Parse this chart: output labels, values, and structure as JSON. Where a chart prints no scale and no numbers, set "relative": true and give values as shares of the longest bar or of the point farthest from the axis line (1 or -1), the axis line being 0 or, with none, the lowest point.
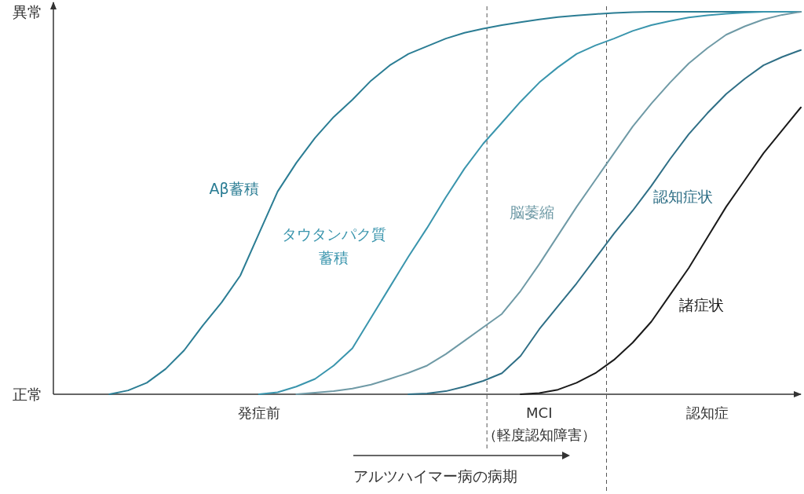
{
  "chart_data": {
    "type": "line",
    "relative": true,
    "categories": [
      null,
      null,
      null,
      null,
      null,
      null,
      null,
      null,
      null,
      null,
      null,
      "発症前",
      null,
      null,
      null,
      null,
      null,
      null,
      null,
      null,
      null,
      null,
      null,
      null,
      null,
      null,
      "MCI（軽度認知障害）",
      null,
      null,
      null,
      null,
      null,
      null,
      null,
      null,
      "認知症",
      null,
      null,
      null,
      null,
      null
    ],
    "xlabel": "アルツハイマー病の病期",
    "annotations": [
      "正常",
      "異常"
    ],
    "series": [
      {
        "name": "Aβ蓄積",
        "color": "#2b7d94",
        "values": [
          null,
          null,
          null,
          0,
          0.01,
          0.03,
          0.066,
          0.115,
          0.18,
          0.24,
          0.31,
          0.42,
          0.53,
          0.605,
          0.67,
          0.725,
          0.77,
          0.82,
          0.86,
          0.89,
          0.91,
          0.93,
          0.945,
          0.956,
          0.965,
          0.973,
          0.98,
          0.986,
          0.99,
          0.994,
          0.997,
          0.999,
          1,
          1,
          1,
          1,
          1,
          1,
          1,
          1,
          1
        ]
      },
      {
        "name": "タウタンパク質蓄積",
        "color": "#3a95ad",
        "values": [
          null,
          null,
          null,
          null,
          null,
          null,
          null,
          null,
          null,
          null,
          null,
          0,
          0.005,
          0.02,
          0.04,
          0.075,
          0.12,
          0.2,
          0.28,
          0.36,
          0.435,
          0.515,
          0.59,
          0.655,
          0.71,
          0.765,
          0.815,
          0.855,
          0.89,
          0.912,
          0.93,
          0.95,
          0.965,
          0.976,
          0.985,
          0.991,
          0.995,
          0.998,
          1,
          1,
          1
        ]
      },
      {
        "name": "脳萎縮",
        "color": "#6f9aa6",
        "values": [
          null,
          null,
          null,
          null,
          null,
          null,
          null,
          null,
          null,
          null,
          null,
          null,
          null,
          0,
          0.004,
          0.008,
          0.015,
          0.025,
          0.04,
          0.056,
          0.075,
          0.105,
          0.14,
          0.175,
          0.21,
          0.27,
          0.34,
          0.415,
          0.49,
          0.56,
          0.63,
          0.7,
          0.76,
          0.815,
          0.865,
          0.905,
          0.94,
          0.962,
          0.98,
          0.992,
          1
        ]
      },
      {
        "name": "認知症状",
        "color": "#2f6f86",
        "values": [
          null,
          null,
          null,
          null,
          null,
          null,
          null,
          null,
          null,
          null,
          null,
          null,
          null,
          null,
          null,
          null,
          null,
          null,
          null,
          0,
          0.002,
          0.008,
          0.02,
          0.035,
          0.055,
          0.1,
          0.17,
          0.23,
          0.29,
          0.355,
          0.42,
          0.48,
          0.545,
          0.615,
          0.68,
          0.735,
          0.785,
          0.825,
          0.86,
          0.882,
          0.9
        ]
      },
      {
        "name": "諸症状",
        "color": "#1a1a1a",
        "values": [
          null,
          null,
          null,
          null,
          null,
          null,
          null,
          null,
          null,
          null,
          null,
          null,
          null,
          null,
          null,
          null,
          null,
          null,
          null,
          null,
          null,
          null,
          null,
          null,
          null,
          0,
          0.003,
          0.012,
          0.03,
          0.055,
          0.09,
          0.135,
          0.19,
          0.26,
          0.33,
          0.41,
          0.49,
          0.56,
          0.63,
          0.69,
          0.75
        ]
      }
    ],
    "legend": false,
    "grid": false,
    "marker": "none",
    "line_style": "solid"
  }
}
